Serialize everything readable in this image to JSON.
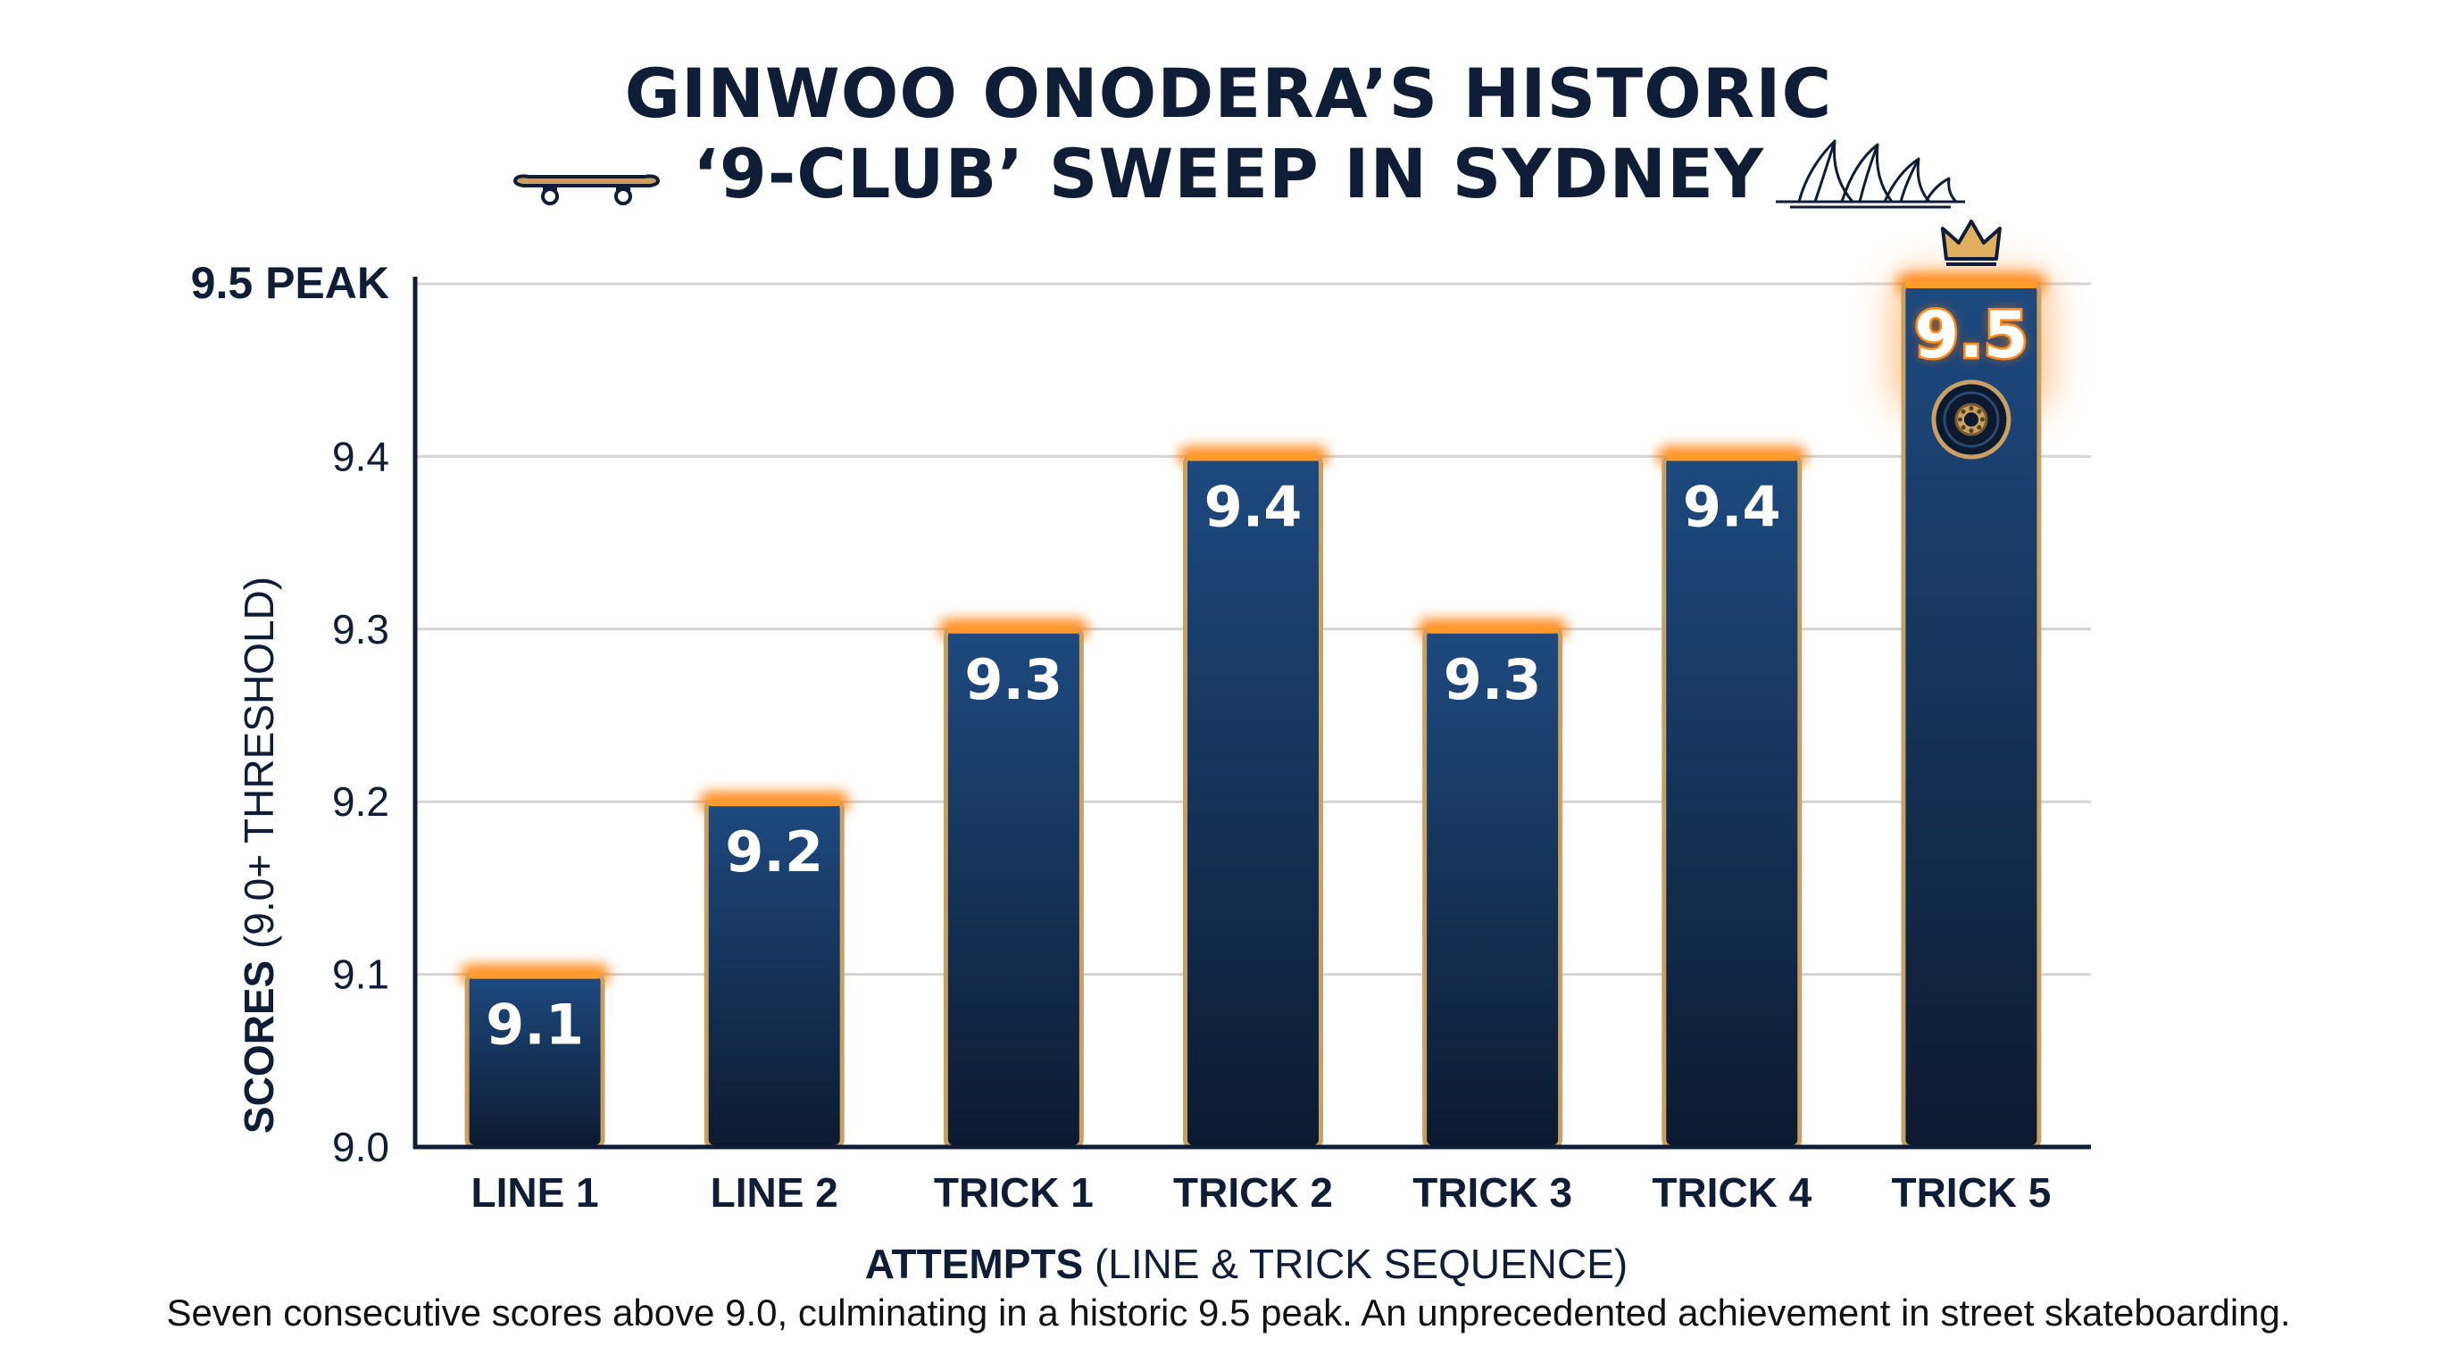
{
  "title": {
    "line1": "GINWOO ONODERA’S HISTORIC",
    "line2": "‘9-CLUB’ SWEEP IN SYDNEY"
  },
  "caption": "Seven consecutive scores above 9.0, culminating in a historic 9.5 peak. An unprecedented achievement in street skateboarding.",
  "icons": {
    "title_left": "skateboard-icon",
    "title_right": "sydney-opera-house-icon",
    "peak_top": "crown-icon",
    "peak_inner": "skate-wheel-icon"
  },
  "colors": {
    "bar_top": "#1e4a80",
    "bar_bottom": "#0c1a30",
    "bar_border": "#c8a063",
    "bar_glow": "#ff7a00",
    "peak_label": "#ff8c1a",
    "text_dark": "#0f1e36",
    "grid": "#d4d4d4"
  },
  "chart_data": {
    "type": "bar",
    "categories": [
      "LINE 1",
      "LINE 2",
      "TRICK 1",
      "TRICK 2",
      "TRICK 3",
      "TRICK 4",
      "TRICK 5"
    ],
    "values": [
      9.1,
      9.2,
      9.3,
      9.4,
      9.3,
      9.4,
      9.5
    ],
    "data_labels": [
      "9.1",
      "9.2",
      "9.3",
      "9.4",
      "9.3",
      "9.4",
      "9.5"
    ],
    "ylim": [
      9.0,
      9.5
    ],
    "yticks": [
      9.0,
      9.1,
      9.2,
      9.3,
      9.4,
      9.5
    ],
    "ytick_labels": [
      "9.0",
      "9.1",
      "9.2",
      "9.3",
      "9.4",
      "9.5 PEAK"
    ],
    "ylabel": {
      "bold": "SCORES",
      "rest": " (9.0+ THRESHOLD)"
    },
    "xlabel": {
      "bold": "ATTEMPTS",
      "rest": " (LINE & TRICK SEQUENCE)"
    },
    "grid": true,
    "highlight_index": 6
  }
}
